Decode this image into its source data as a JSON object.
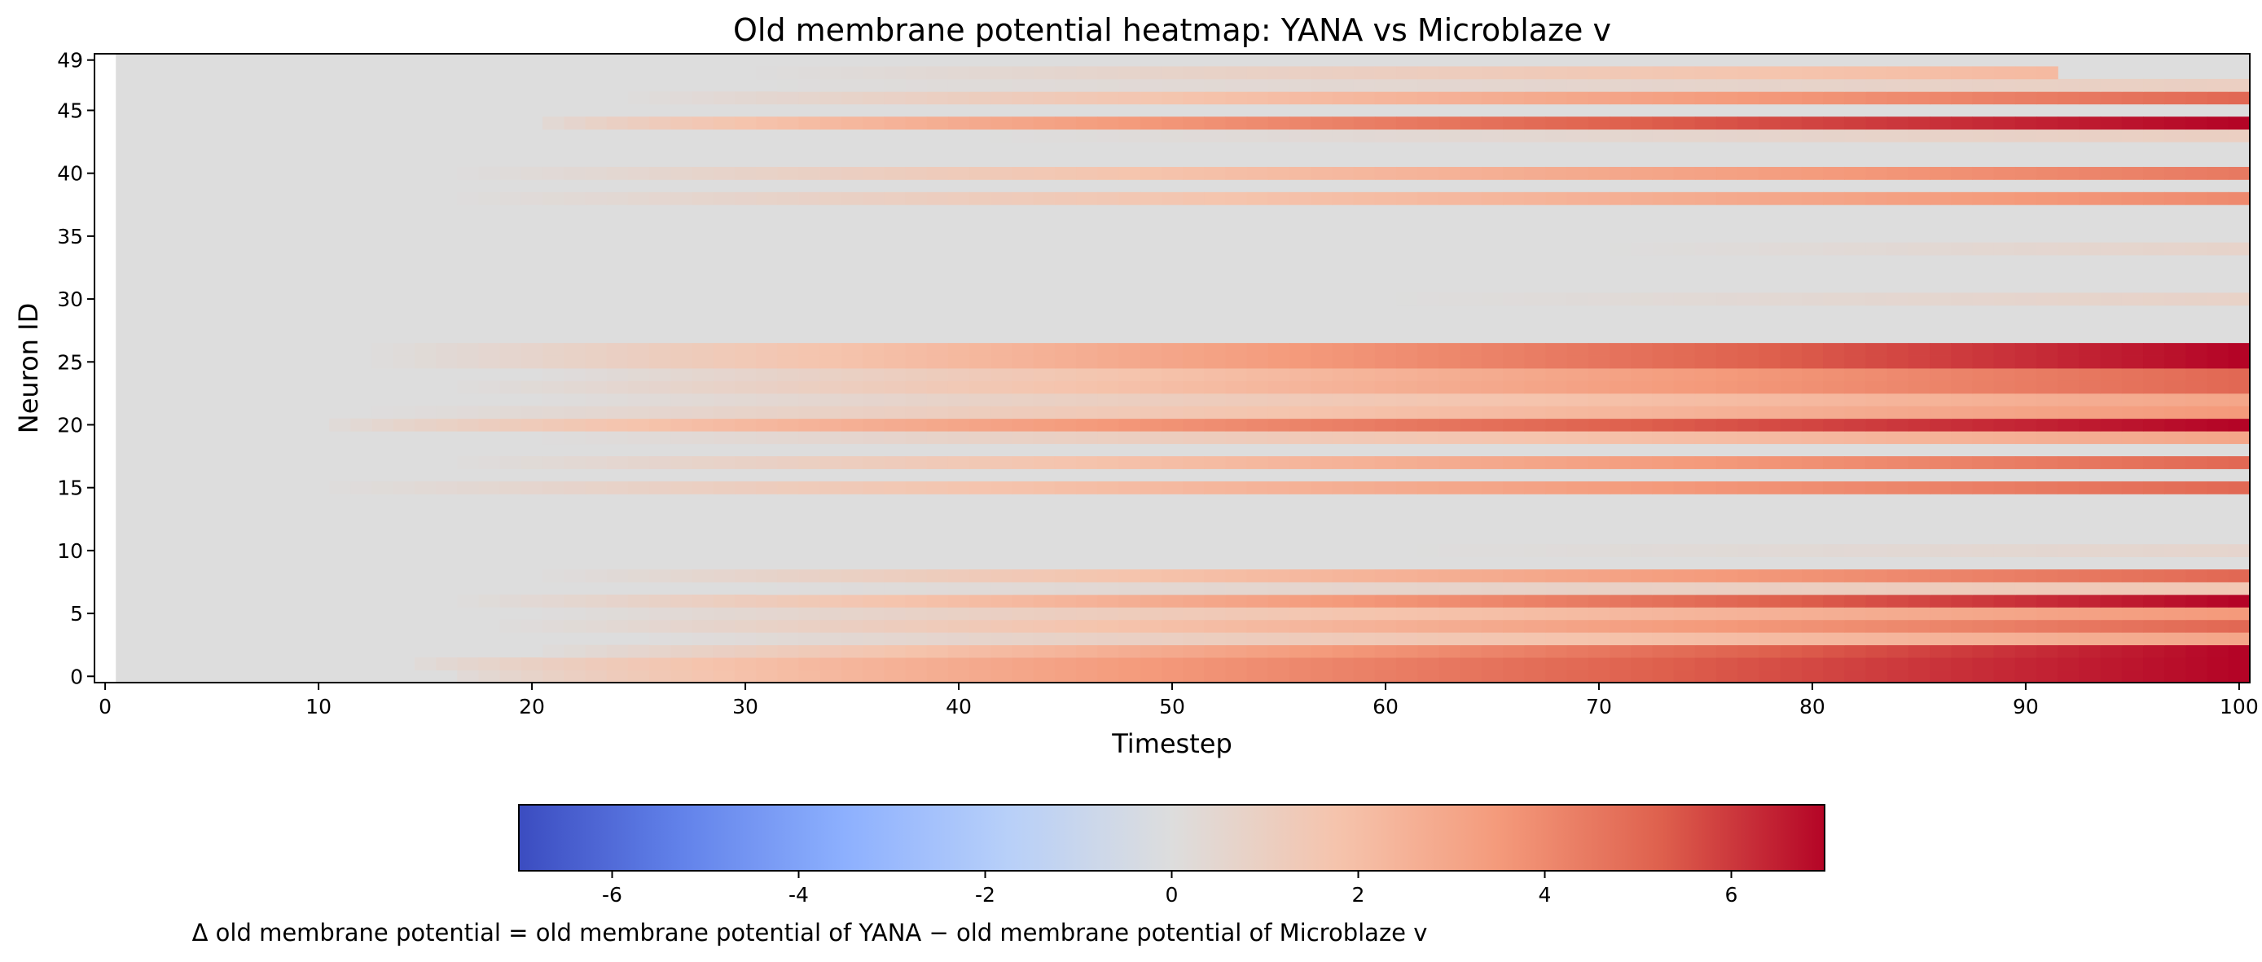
{
  "chart_data": {
    "type": "heatmap",
    "title": "Old membrane potential heatmap: YANA vs Microblaze v",
    "xlabel": "Timestep",
    "ylabel": "Neuron ID",
    "xlim": [
      0,
      100
    ],
    "ylim": [
      0,
      49
    ],
    "x_ticks": [
      "0",
      "10",
      "20",
      "30",
      "40",
      "50",
      "60",
      "70",
      "80",
      "90",
      "100"
    ],
    "y_ticks": [
      "0",
      "5",
      "10",
      "15",
      "20",
      "25",
      "30",
      "35",
      "40",
      "45",
      "49"
    ],
    "colormap": "coolwarm",
    "vmin": -7,
    "vmax": 7,
    "colorbar": {
      "ticks": [
        "-6",
        "-4",
        "-2",
        "0",
        "2",
        "4",
        "6"
      ],
      "label": "Δ old membrane potential = old membrane potential of YANA − old membrane potential of Microblaze v"
    },
    "neuron_rows": [
      {
        "neuron": 0,
        "start": 16,
        "end_value": 7.0,
        "rate": 1.35
      },
      {
        "neuron": 1,
        "start": 14,
        "end_value": 7.0,
        "rate": 1.3
      },
      {
        "neuron": 2,
        "start": 20,
        "end_value": 7.0,
        "rate": 1.1
      },
      {
        "neuron": 3,
        "start": 25,
        "end_value": 3.0,
        "rate": 1.0
      },
      {
        "neuron": 4,
        "start": 18,
        "end_value": 5.0,
        "rate": 1.0
      },
      {
        "neuron": 5,
        "start": 20,
        "end_value": 3.5,
        "rate": 1.0
      },
      {
        "neuron": 6,
        "start": 16,
        "end_value": 7.0,
        "rate": 1.0
      },
      {
        "neuron": 7,
        "start": 30,
        "end_value": 1.5,
        "rate": 1.0
      },
      {
        "neuron": 8,
        "start": 20,
        "end_value": 5.0,
        "rate": 1.0
      },
      {
        "neuron": 10,
        "start": 60,
        "end_value": 0.6,
        "rate": 1.0
      },
      {
        "neuron": 15,
        "start": 10,
        "end_value": 5.0,
        "rate": 1.0
      },
      {
        "neuron": 17,
        "start": 16,
        "end_value": 5.0,
        "rate": 1.0
      },
      {
        "neuron": 19,
        "start": 20,
        "end_value": 3.0,
        "rate": 1.0
      },
      {
        "neuron": 20,
        "start": 10,
        "end_value": 7.0,
        "rate": 1.3
      },
      {
        "neuron": 21,
        "start": 12,
        "end_value": 3.5,
        "rate": 1.0
      },
      {
        "neuron": 22,
        "start": 20,
        "end_value": 3.0,
        "rate": 1.0
      },
      {
        "neuron": 23,
        "start": 16,
        "end_value": 5.0,
        "rate": 1.0
      },
      {
        "neuron": 24,
        "start": 20,
        "end_value": 5.0,
        "rate": 1.0
      },
      {
        "neuron": 25,
        "start": 12,
        "end_value": 7.0,
        "rate": 1.0
      },
      {
        "neuron": 26,
        "start": 12,
        "end_value": 7.0,
        "rate": 1.0
      },
      {
        "neuron": 30,
        "start": 60,
        "end_value": 0.8,
        "rate": 1.0
      },
      {
        "neuron": 34,
        "start": 70,
        "end_value": 0.7,
        "rate": 1.0
      },
      {
        "neuron": 38,
        "start": 16,
        "end_value": 4.0,
        "rate": 1.0
      },
      {
        "neuron": 40,
        "start": 16,
        "end_value": 4.5,
        "rate": 1.0
      },
      {
        "neuron": 43,
        "start": 40,
        "end_value": 1.0,
        "rate": 1.0
      },
      {
        "neuron": 44,
        "start": 20,
        "end_value": 7.0,
        "rate": 1.5
      },
      {
        "neuron": 46,
        "start": 24,
        "end_value": 5.0,
        "rate": 1.0
      },
      {
        "neuron": 47,
        "start": 30,
        "end_value": 1.0,
        "rate": 1.0
      },
      {
        "neuron": 48,
        "start": 30,
        "end_value": 2.5,
        "rate": 1.0,
        "cutoff": 91
      }
    ]
  }
}
